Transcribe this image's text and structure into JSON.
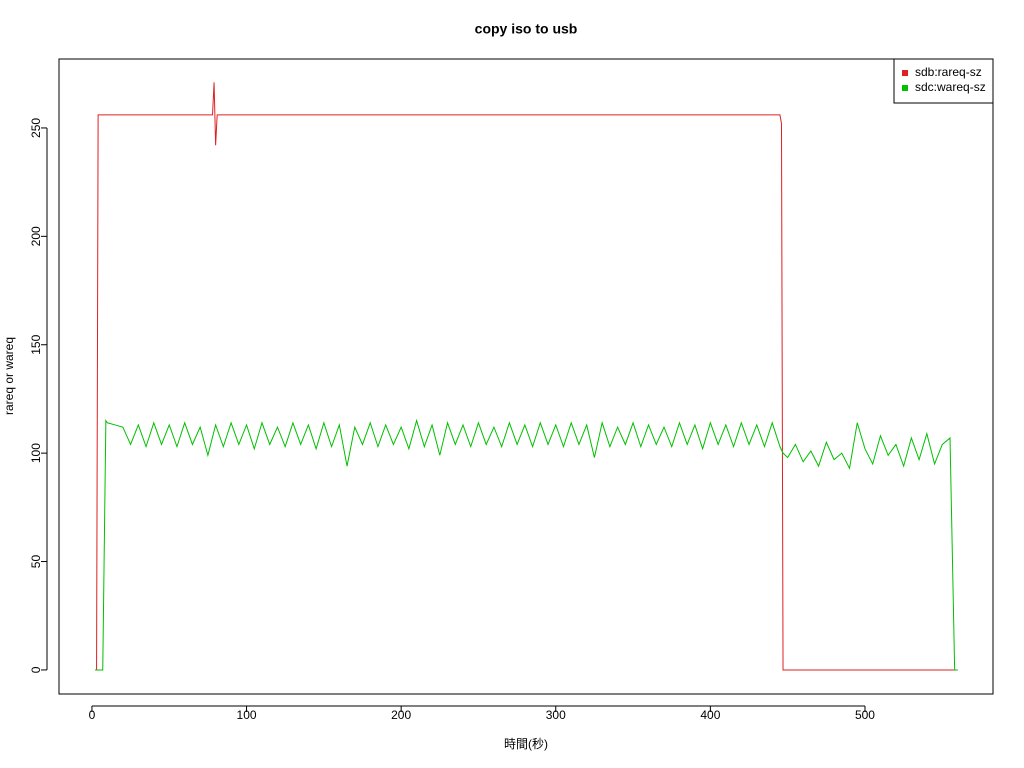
{
  "chart_data": {
    "type": "line",
    "title": "copy iso to usb",
    "x_label": "時間(秒)",
    "y_label": "rareq or wareq",
    "xlim": [
      -21.3,
      582.8
    ],
    "ylim": [
      -11.1,
      281.8
    ],
    "xticks": [
      0,
      100,
      200,
      300,
      400,
      500
    ],
    "yticks": [
      0,
      50,
      100,
      150,
      200,
      250
    ],
    "grid": false,
    "legend_position": "top-right",
    "series": [
      {
        "name": "sdb:rareq-sz",
        "color": "#df2020",
        "x": [
          2,
          3,
          4,
          5,
          78,
          79,
          80,
          81,
          445,
          446,
          447,
          560
        ],
        "values": [
          0,
          0,
          256,
          256,
          256,
          271,
          242,
          256,
          256,
          252,
          0,
          0
        ]
      },
      {
        "name": "sdc:wareq-sz",
        "color": "#00c000",
        "x": [
          2,
          7,
          9,
          10,
          15,
          20,
          25,
          30,
          35,
          40,
          45,
          50,
          55,
          60,
          65,
          70,
          75,
          80,
          85,
          90,
          95,
          100,
          105,
          110,
          115,
          120,
          125,
          130,
          135,
          140,
          145,
          150,
          155,
          160,
          165,
          170,
          175,
          180,
          185,
          190,
          195,
          200,
          205,
          210,
          215,
          220,
          225,
          230,
          235,
          240,
          245,
          250,
          255,
          260,
          265,
          270,
          275,
          280,
          285,
          290,
          295,
          300,
          305,
          310,
          315,
          320,
          325,
          330,
          335,
          340,
          345,
          350,
          355,
          360,
          365,
          370,
          375,
          380,
          385,
          390,
          395,
          400,
          405,
          410,
          415,
          420,
          425,
          430,
          435,
          440,
          445,
          447,
          450,
          455,
          460,
          465,
          470,
          475,
          480,
          485,
          490,
          495,
          500,
          505,
          510,
          515,
          520,
          525,
          530,
          535,
          540,
          545,
          550,
          555,
          558,
          560
        ],
        "values": [
          0,
          0,
          115,
          114,
          113,
          112,
          104,
          113,
          103,
          114,
          104,
          113,
          103,
          114,
          104,
          112,
          99,
          113,
          103,
          114,
          104,
          113,
          102,
          114,
          104,
          112,
          103,
          114,
          104,
          113,
          102,
          114,
          103,
          113,
          94,
          112,
          104,
          114,
          103,
          113,
          104,
          112,
          102,
          115,
          103,
          113,
          99,
          114,
          104,
          113,
          103,
          114,
          104,
          112,
          103,
          114,
          104,
          113,
          103,
          114,
          104,
          113,
          103,
          114,
          104,
          113,
          98,
          114,
          103,
          112,
          104,
          114,
          103,
          113,
          104,
          112,
          103,
          114,
          104,
          113,
          102,
          114,
          104,
          113,
          103,
          114,
          104,
          113,
          103,
          114,
          103,
          100,
          98,
          104,
          96,
          101,
          94,
          105,
          97,
          100,
          93,
          114,
          102,
          95,
          108,
          99,
          104,
          94,
          107,
          97,
          109,
          95,
          104,
          107,
          0,
          0
        ]
      }
    ]
  }
}
